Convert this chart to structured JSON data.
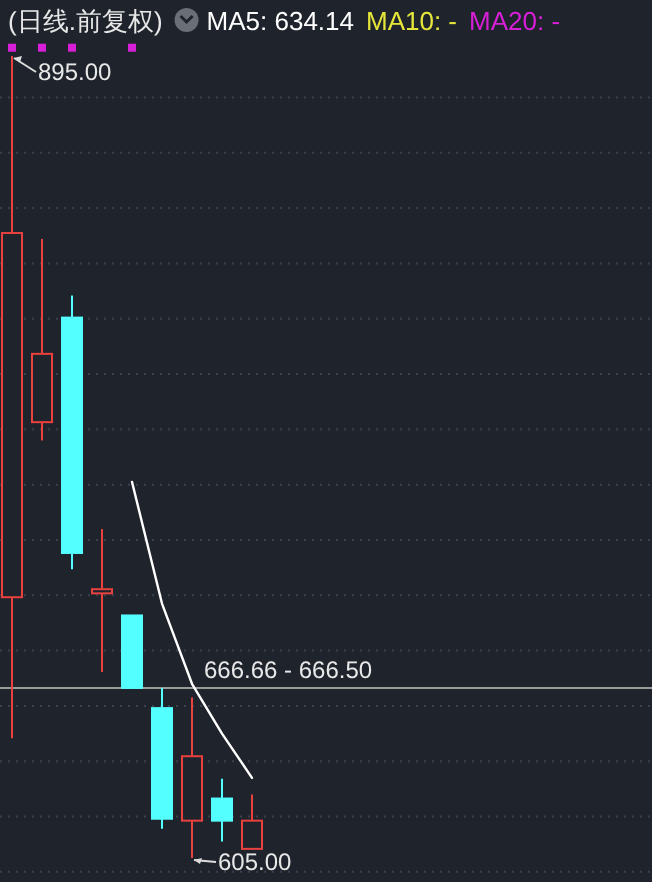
{
  "chart_data": {
    "type": "candlestick",
    "title": "(日线.前复权)",
    "categories": [
      null,
      null,
      null,
      null,
      null,
      null,
      null,
      null,
      null
    ],
    "ohlc": [
      [
        699.3,
        895,
        648.3,
        831
      ],
      [
        762.6,
        828.8,
        756,
        787.3
      ],
      [
        800.4,
        808.4,
        709.4,
        715.3
      ],
      [
        700.7,
        724,
        672.3,
        702.2
      ],
      [
        692.7,
        692.7,
        666.5,
        666.5
      ],
      [
        659.2,
        666.5,
        615.6,
        619.2
      ],
      [
        618.5,
        663,
        605,
        641.8
      ],
      [
        626.5,
        633.7,
        611,
        618.5
      ],
      [
        608.3,
        628,
        608.3,
        618.5
      ]
    ],
    "colors": [
      "#e8413e",
      "#e8413e",
      "#54ffff",
      "#e8413e",
      "#54ffff",
      "#54ffff",
      "#e8413e",
      "#54ffff",
      "#e8413e"
    ],
    "series": [
      {
        "name": "MA5: 634.14",
        "type": "line",
        "color": "#ffffff",
        "values": [
          null,
          null,
          null,
          null,
          741,
          697,
          668,
          650,
          634
        ]
      },
      {
        "name": "MA10: -",
        "type": "line",
        "color": "#e6e63a",
        "values": [
          null,
          null,
          null,
          null,
          null,
          null,
          null,
          null,
          null
        ]
      },
      {
        "name": "MA20: -",
        "type": "line",
        "color": "#d81fd8",
        "values": [
          null,
          null,
          null,
          null,
          null,
          null,
          null,
          null,
          null
        ]
      },
      {
        "type": "scatter",
        "color": "#d81fd8",
        "marker": "square",
        "values": [
          898,
          898,
          898,
          null,
          898,
          null,
          null,
          null,
          null
        ]
      }
    ],
    "yticks": [
      {
        "value": 600,
        "label": null
      },
      {
        "value": 620,
        "label": null
      },
      {
        "value": 640,
        "label": null
      },
      {
        "value": 660,
        "label": null
      },
      {
        "value": 680,
        "label": null
      },
      {
        "value": 700,
        "label": null
      },
      {
        "value": 720,
        "label": null
      },
      {
        "value": 740,
        "label": null
      },
      {
        "value": 760,
        "label": null
      },
      {
        "value": 780,
        "label": null
      },
      {
        "value": 800,
        "label": null
      },
      {
        "value": 820,
        "label": null
      },
      {
        "value": 840,
        "label": null
      },
      {
        "value": 860,
        "label": null
      },
      {
        "value": 880,
        "label": null
      }
    ],
    "grid": "y",
    "legend": "top",
    "ref_lines": [
      {
        "axis": "y",
        "value": 666.5,
        "color": "#9a9a9a"
      }
    ],
    "annotations": [
      {
        "text": "895.00",
        "y": 895
      },
      {
        "text": "605.00",
        "y": 605
      },
      {
        "text": "666.66 - 666.50",
        "y": 666.5
      }
    ]
  }
}
